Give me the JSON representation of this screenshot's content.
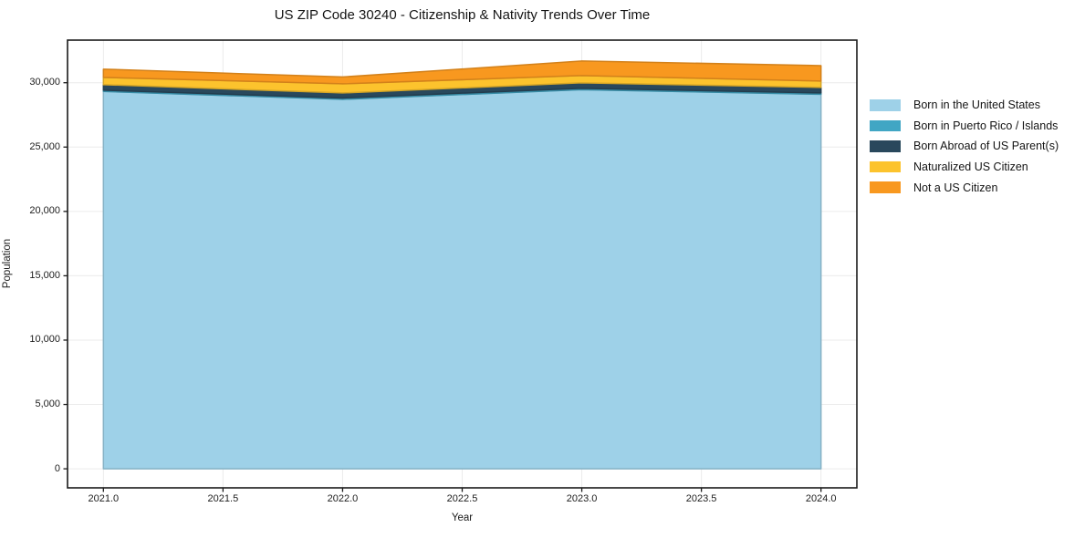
{
  "page": {
    "background": "#ffffff"
  },
  "chart_data": {
    "type": "area",
    "stacked": true,
    "title": "US ZIP Code 30240 - Citizenship & Nativity Trends Over Time",
    "xlabel": "Year",
    "ylabel": "Population",
    "x": [
      2021,
      2022,
      2023,
      2024
    ],
    "series": [
      {
        "name": "Born in the United States",
        "color": "#9ed1e8",
        "values": [
          29320,
          28710,
          29460,
          29100
        ]
      },
      {
        "name": "Born in Puerto Rico / Islands",
        "color": "#41a6c4",
        "values": [
          100,
          105,
          105,
          105
        ]
      },
      {
        "name": "Born Abroad of US Parent(s)",
        "color": "#29485c",
        "values": [
          430,
          390,
          425,
          430
        ]
      },
      {
        "name": "Naturalized US Citizen",
        "color": "#fcc32d",
        "values": [
          565,
          710,
          565,
          495
        ]
      },
      {
        "name": "Not a US Citizen",
        "color": "#f8981f",
        "values": [
          640,
          530,
          1130,
          1200
        ]
      }
    ],
    "xlim": [
      2020.85,
      2024.15
    ],
    "ylim": [
      -1480,
      33310
    ],
    "xticks": [
      2021.0,
      2021.5,
      2022.0,
      2022.5,
      2023.0,
      2023.5,
      2024.0
    ],
    "xtick_labels": [
      "2021.0",
      "2021.5",
      "2022.0",
      "2022.5",
      "2023.0",
      "2023.5",
      "2024.0"
    ],
    "yticks": [
      0,
      5000,
      10000,
      15000,
      20000,
      25000,
      30000
    ],
    "ytick_labels": [
      "0",
      "5,000",
      "10,000",
      "15,000",
      "20,000",
      "25,000",
      "30,000"
    ],
    "grid": true,
    "grid_color": "#ebebeb",
    "axis_color": "#1a1a1a",
    "legend_position": "right"
  }
}
